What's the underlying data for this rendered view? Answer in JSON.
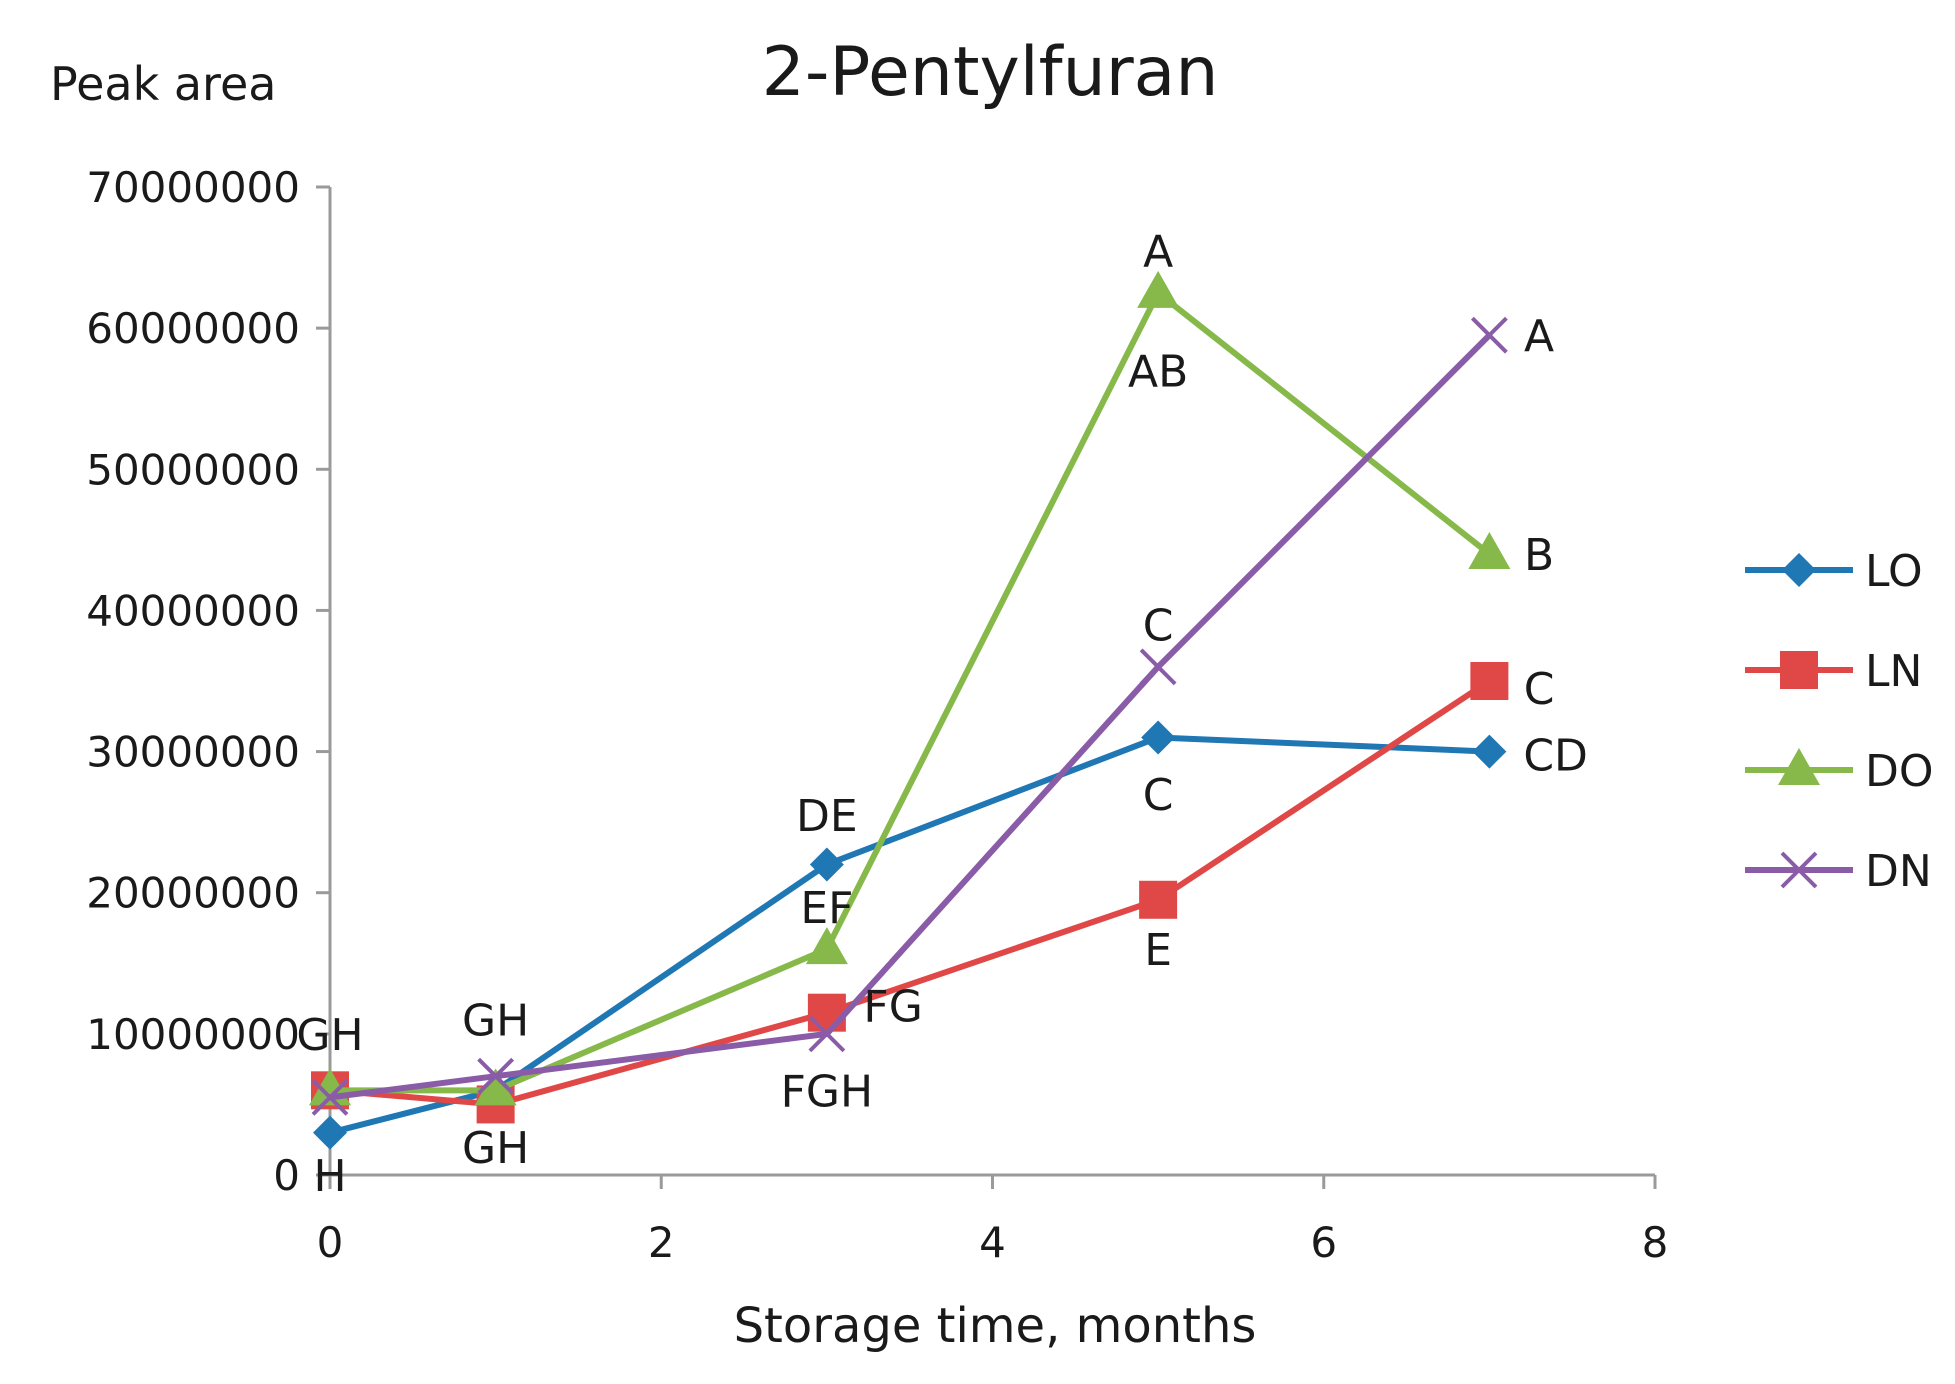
{
  "chart_data": {
    "type": "line",
    "title": "2-Pentylfuran",
    "xlabel": "Storage time, months",
    "ylabel": "Peak area",
    "xlim": [
      0,
      8
    ],
    "ylim": [
      0,
      70000000
    ],
    "x_ticks": [
      0,
      2,
      4,
      6,
      8
    ],
    "y_ticks": [
      0,
      10000000,
      20000000,
      30000000,
      40000000,
      50000000,
      60000000,
      70000000
    ],
    "x_tick_labels": [
      "0",
      "2",
      "4",
      "6",
      "8"
    ],
    "y_tick_labels": [
      "0",
      "10000000",
      "20000000",
      "30000000",
      "40000000",
      "50000000",
      "60000000",
      "70000000"
    ],
    "grid": false,
    "legend_position": "right",
    "x": [
      0,
      1,
      3,
      5,
      7
    ],
    "series": [
      {
        "name": "LO",
        "color": "#1f77b4",
        "marker": "diamond",
        "values": [
          3000000,
          6000000,
          22000000,
          31000000,
          30000000
        ]
      },
      {
        "name": "LN",
        "color": "#e04848",
        "marker": "square",
        "values": [
          6000000,
          5000000,
          11500000,
          19500000,
          35000000
        ]
      },
      {
        "name": "DO",
        "color": "#86b94a",
        "marker": "triangle",
        "values": [
          6000000,
          6000000,
          16000000,
          62500000,
          44000000
        ]
      },
      {
        "name": "DN",
        "color": "#8a5ca8",
        "marker": "x",
        "values": [
          5500000,
          7000000,
          10000000,
          36000000,
          59500000
        ]
      }
    ],
    "annotations": [
      {
        "text": "H",
        "x": 0,
        "y": 0
      },
      {
        "text": "GH",
        "x": 0,
        "y": 10000000
      },
      {
        "text": "GH",
        "x": 1,
        "y": 11000000
      },
      {
        "text": "GH",
        "x": 1,
        "y": 2000000
      },
      {
        "text": "DE",
        "x": 3,
        "y": 25500000
      },
      {
        "text": "EF",
        "x": 3,
        "y": 19000000
      },
      {
        "text": "FG",
        "x": 3.4,
        "y": 12000000
      },
      {
        "text": "FGH",
        "x": 3,
        "y": 6000000
      },
      {
        "text": "A",
        "x": 5,
        "y": 65500000
      },
      {
        "text": "AB",
        "x": 5,
        "y": 57000000
      },
      {
        "text": "C",
        "x": 5,
        "y": 39000000
      },
      {
        "text": "C",
        "x": 5,
        "y": 27000000
      },
      {
        "text": "E",
        "x": 5,
        "y": 16000000
      },
      {
        "text": "A",
        "x": 7.3,
        "y": 59500000
      },
      {
        "text": "B",
        "x": 7.3,
        "y": 44000000
      },
      {
        "text": "C",
        "x": 7.3,
        "y": 34500000
      },
      {
        "text": "CD",
        "x": 7.4,
        "y": 29800000
      }
    ]
  }
}
